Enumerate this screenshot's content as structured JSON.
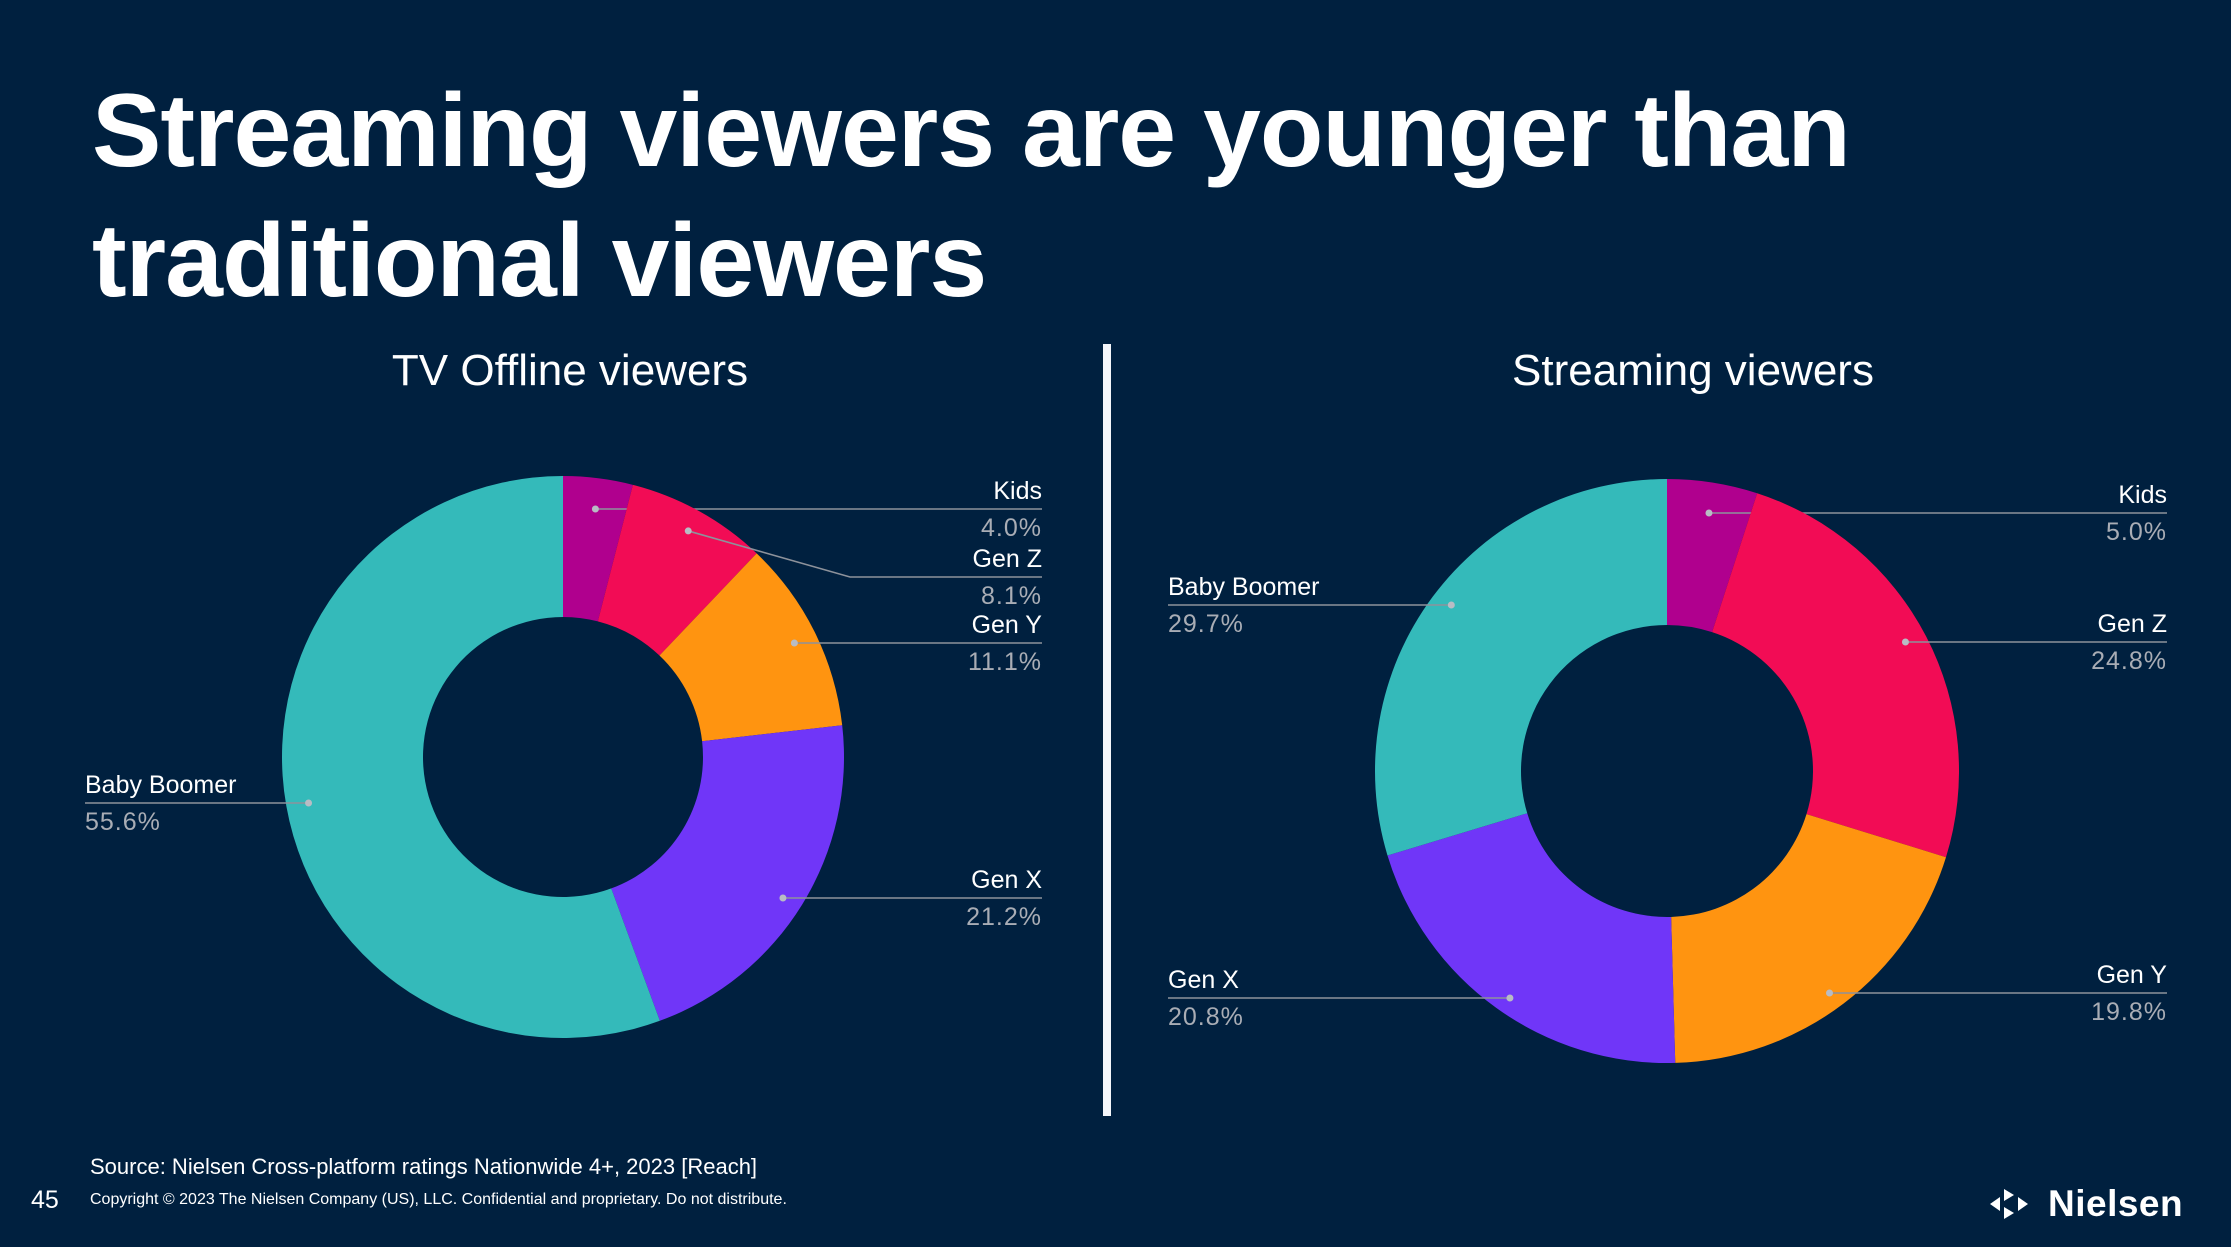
{
  "slide": {
    "title_lines": [
      "Streaming viewers are younger than",
      "traditional viewers"
    ],
    "source": "Source: Nielsen Cross-platform ratings Nationwide 4+, 2023 [Reach]",
    "copyright": "Copyright © 2023 The Nielsen Company (US), LLC. Confidential and proprietary. Do not distribute.",
    "page_number": "45",
    "logo_text": "Nielsen",
    "logo_icon": "nielsen-arrows-icon"
  },
  "colors": {
    "background": "#00203F",
    "Kids": "#B0008E",
    "Gen Z": "#F20C55",
    "Gen Y": "#FF9410",
    "Gen X": "#7036F8",
    "Baby Boomer": "#34BABA"
  },
  "chart_data": [
    {
      "type": "pie",
      "variant": "donut",
      "title": "TV Offline viewers",
      "categories": [
        "Kids",
        "Gen Z",
        "Gen Y",
        "Gen X",
        "Baby Boomer"
      ],
      "values": [
        4.0,
        8.1,
        11.1,
        21.2,
        55.6
      ],
      "labels": [
        "4.0%",
        "8.1%",
        "11.1%",
        "21.2%",
        "55.6%"
      ],
      "unit": "%",
      "start_angle": "12 o'clock, clockwise",
      "label_side": [
        "right",
        "right",
        "right",
        "right",
        "left"
      ]
    },
    {
      "type": "pie",
      "variant": "donut",
      "title": "Streaming viewers",
      "categories": [
        "Kids",
        "Gen Z",
        "Gen Y",
        "Gen X",
        "Baby Boomer"
      ],
      "values": [
        5.0,
        24.8,
        19.8,
        20.8,
        29.7
      ],
      "labels": [
        "5.0%",
        "24.8%",
        "19.8%",
        "20.8%",
        "29.7%"
      ],
      "unit": "%",
      "start_angle": "12 o'clock, clockwise",
      "label_side": [
        "right",
        "right",
        "right",
        "left",
        "left"
      ]
    }
  ]
}
